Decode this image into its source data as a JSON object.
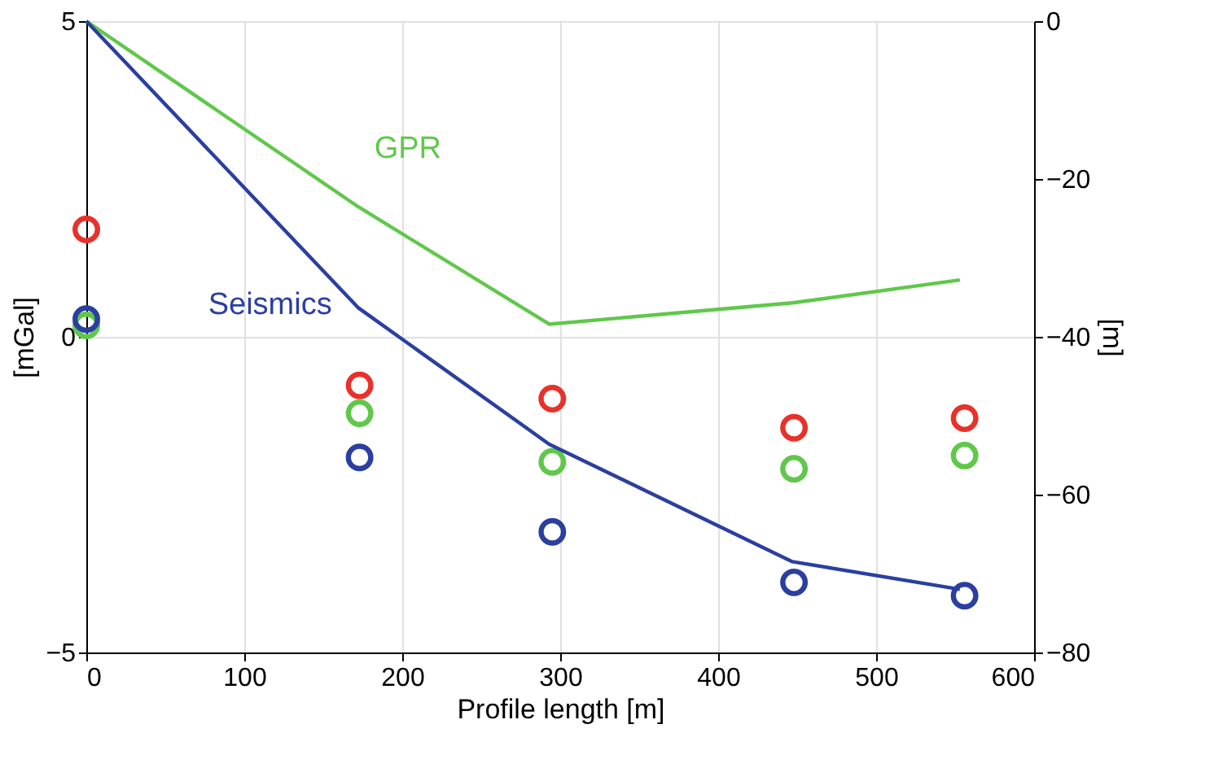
{
  "chart_data": {
    "type": "scatter",
    "xlabel": "Profile length [m]",
    "ylabel": "[mGal]",
    "y2label": "[m]",
    "xlim": [
      0,
      600
    ],
    "xticks": [
      0,
      100,
      200,
      300,
      400,
      500,
      600
    ],
    "ylim": [
      -5,
      5
    ],
    "yticks": [
      -5,
      0,
      5
    ],
    "y2lim": [
      -80,
      0
    ],
    "y2ticks": [
      -80,
      -60,
      -40,
      -20,
      0
    ],
    "grid": true,
    "legend": false,
    "marker": "circle",
    "series": [
      {
        "name": "GPR",
        "type": "line",
        "axis": "y2",
        "color": "#5fc84a",
        "line_style": "solid",
        "marker": "none",
        "x": [
          0,
          172,
          293,
          447,
          553
        ],
        "values": [
          0,
          -23.5,
          -38.4,
          -35.7,
          -32.8
        ]
      },
      {
        "name": "Seismics",
        "type": "line",
        "axis": "y2",
        "color": "#2b3fa0",
        "line_style": "solid",
        "marker": "none",
        "x": [
          0,
          172,
          293,
          447,
          553
        ],
        "values": [
          0,
          -36.3,
          -53.6,
          -68.5,
          -72
        ]
      },
      {
        "color": "#e8312a",
        "x": [
          0,
          173,
          295,
          448,
          556
        ],
        "values": [
          1.7,
          -0.77,
          -0.98,
          -1.44,
          -1.29
        ]
      },
      {
        "color": "#5fc84a",
        "x": [
          0,
          173,
          295,
          448,
          556
        ],
        "values": [
          0.18,
          -1.21,
          -1.98,
          -2.09,
          -1.88
        ]
      },
      {
        "color": "#2b3fa0",
        "x": [
          0,
          173,
          295,
          448,
          556
        ],
        "values": [
          0.28,
          -1.91,
          -3.09,
          -3.89,
          -4.1
        ]
      }
    ]
  }
}
